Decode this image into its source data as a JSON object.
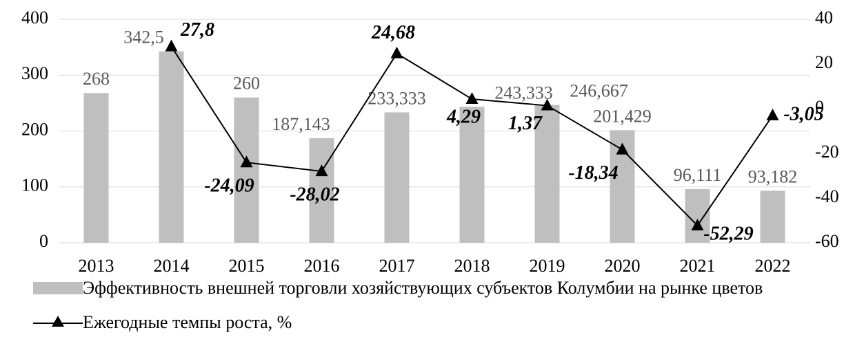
{
  "chart_data": {
    "type": "bar-line",
    "categories": [
      "2013",
      "2014",
      "2015",
      "2016",
      "2017",
      "2018",
      "2019",
      "2020",
      "2021",
      "2022"
    ],
    "series": [
      {
        "name": "Эффективность внешней торговли хозяйствующих субъектов Колумбии на рынке цветов",
        "type": "bar",
        "color": "#bfbfbf",
        "values": [
          268,
          342.5,
          260,
          187.143,
          233.333,
          243.333,
          246.667,
          201.429,
          96.111,
          93.182
        ],
        "value_labels": [
          "268",
          "342,5",
          "260",
          "187,143",
          "233,333",
          "243,333",
          "246,667",
          "201,429",
          "96,111",
          "93,182"
        ]
      },
      {
        "name": "Ежегодные темпы роста, %",
        "type": "line",
        "axis": "y2",
        "color": "#000000",
        "values": [
          null,
          27.8,
          -24.09,
          -28.02,
          24.68,
          4.29,
          1.37,
          -18.34,
          -52.29,
          -3.05
        ],
        "value_labels": [
          null,
          "27,8",
          "-24,09",
          "-28,02",
          "24,68",
          "4,29",
          "1,37",
          "-18,34",
          "-52,29",
          "-3,05"
        ]
      }
    ],
    "ylim": [
      0,
      400
    ],
    "yticks": [
      0,
      100,
      200,
      300,
      400
    ],
    "y2lim": [
      -60,
      40
    ],
    "y2ticks": [
      -60,
      -40,
      -20,
      0,
      20,
      40
    ],
    "grid": true,
    "legend": "bottom"
  }
}
